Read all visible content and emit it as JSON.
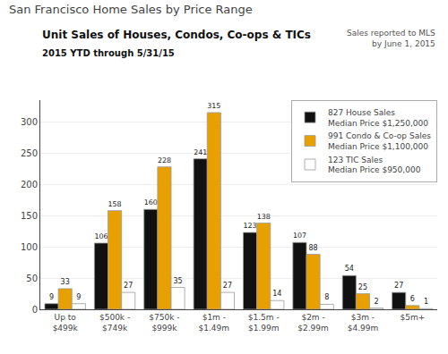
{
  "chart_data": {
    "type": "bar",
    "title": "San Francisco Home Sales by Price Range",
    "subtitle": "Unit Sales of Houses, Condos, Co-ops & TICs",
    "annotations": [
      "2015 YTD through 5/31/15",
      "Sales reported to MLS\nby June 1, 2015"
    ],
    "categories": [
      "Up to\n$499k",
      "$500k -\n$749k",
      "$750k -\n$999k",
      "$1m -\n$1.49m",
      "$1.5m -\n$1.99m",
      "$2m -\n$2.99m",
      "$3m -\n$4.99m",
      "$5m+"
    ],
    "series": [
      {
        "name": "827 House Sales\nMedian Price $1,250,000",
        "color": "#111111",
        "values": [
          9,
          106,
          160,
          241,
          123,
          107,
          54,
          27
        ]
      },
      {
        "name": "991 Condo & Co-op Sales\nMedian Price $1,100,000",
        "color": "#E8A000",
        "values": [
          33,
          158,
          228,
          315,
          138,
          88,
          25,
          6
        ]
      },
      {
        "name": "123 TIC Sales\nMedian Price $950,000",
        "color": "#ffffff",
        "values": [
          9,
          27,
          35,
          27,
          14,
          8,
          2,
          1
        ]
      }
    ],
    "ylim": [
      0,
      335
    ],
    "yticks": [
      0,
      50,
      100,
      150,
      200,
      250,
      300
    ],
    "grid": true,
    "legend": "upper right",
    "data_labels": true
  }
}
